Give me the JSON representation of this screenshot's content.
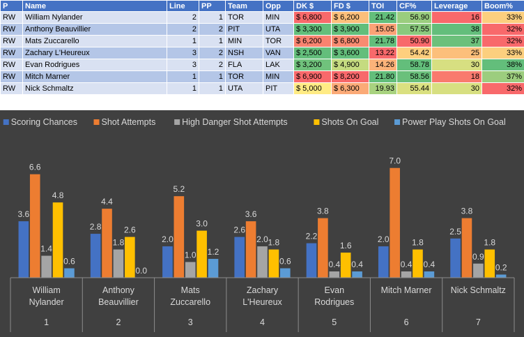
{
  "table": {
    "headers": [
      "P",
      "Name",
      "Line",
      "PP",
      "Team",
      "Opp",
      "DK $",
      "FD $",
      "TOI",
      "CF%",
      "Leverage",
      "Boom%"
    ],
    "rows": [
      {
        "pos": "RW",
        "name": "William Nylander",
        "line": "2",
        "pp": "1",
        "team": "TOR",
        "opp": "MIN",
        "dk": "$ 6,800",
        "fd": "$ 6,200",
        "toi": "21.42",
        "cf": "56.90",
        "leverage": "16",
        "boom": "33%"
      },
      {
        "pos": "RW",
        "name": "Anthony Beauvillier",
        "line": "2",
        "pp": "2",
        "team": "PIT",
        "opp": "UTA",
        "dk": "$ 3,300",
        "fd": "$ 3,900",
        "toi": "15.05",
        "cf": "57.55",
        "leverage": "38",
        "boom": "32%"
      },
      {
        "pos": "RW",
        "name": "Mats Zuccarello",
        "line": "1",
        "pp": "1",
        "team": "MIN",
        "opp": "TOR",
        "dk": "$ 6,200",
        "fd": "$ 6,800",
        "toi": "21.78",
        "cf": "50.90",
        "leverage": "37",
        "boom": "32%"
      },
      {
        "pos": "RW",
        "name": "Zachary L'Heureux",
        "line": "3",
        "pp": "2",
        "team": "NSH",
        "opp": "VAN",
        "dk": "$ 2,500",
        "fd": "$ 3,600",
        "toi": "13.22",
        "cf": "54.42",
        "leverage": "25",
        "boom": "33%"
      },
      {
        "pos": "RW",
        "name": "Evan Rodrigues",
        "line": "3",
        "pp": "2",
        "team": "FLA",
        "opp": "LAK",
        "dk": "$ 3,200",
        "fd": "$ 4,900",
        "toi": "14.26",
        "cf": "58.78",
        "leverage": "30",
        "boom": "38%"
      },
      {
        "pos": "RW",
        "name": "Mitch Marner",
        "line": "1",
        "pp": "1",
        "team": "TOR",
        "opp": "MIN",
        "dk": "$ 6,900",
        "fd": "$ 8,200",
        "toi": "21.80",
        "cf": "58.56",
        "leverage": "18",
        "boom": "37%"
      },
      {
        "pos": "RW",
        "name": "Nick Schmaltz",
        "line": "1",
        "pp": "1",
        "team": "UTA",
        "opp": "PIT",
        "dk": "$ 5,000",
        "fd": "$ 6,300",
        "toi": "19.93",
        "cf": "55.44",
        "leverage": "30",
        "boom": "32%"
      }
    ],
    "colors": {
      "dk": [
        "#f8696b",
        "#63be7b",
        "#f98370",
        "#63be7b",
        "#70c27c",
        "#f8696b",
        "#ffeb84"
      ],
      "fd": [
        "#fcbf7b",
        "#63be7b",
        "#f98b71",
        "#63be7b",
        "#c5db80",
        "#f8696b",
        "#fbaa77"
      ],
      "toi": [
        "#63be7b",
        "#fba276",
        "#63be7b",
        "#f8696b",
        "#fbb37a",
        "#63be7b",
        "#a8d27f"
      ],
      "cf": [
        "#9acd7e",
        "#8ac97d",
        "#f8696b",
        "#fdcf7e",
        "#63be7b",
        "#6ac07b",
        "#dae080"
      ],
      "leverage": [
        "#f8696b",
        "#63be7b",
        "#6cc07b",
        "#fcbf7b",
        "#d7df81",
        "#f97a6e",
        "#d7df81"
      ],
      "boom": [
        "#fccf7e",
        "#f8696b",
        "#f8696b",
        "#fccf7e",
        "#63be7b",
        "#9ccd7e",
        "#f8696b"
      ]
    }
  },
  "chart_data": {
    "type": "bar",
    "title": "",
    "categories": [
      "William Nylander",
      "Anthony Beauvillier",
      "Mats Zuccarello",
      "Zachary L'Heureux",
      "Evan Rodrigues",
      "Mitch Marner",
      "Nick Schmaltz"
    ],
    "category_index": [
      "1",
      "2",
      "3",
      "4",
      "5",
      "6",
      "7"
    ],
    "series": [
      {
        "name": "Scoring Chances",
        "color": "#4472c4",
        "values": [
          3.6,
          2.8,
          2.0,
          2.6,
          2.2,
          2.0,
          2.5
        ]
      },
      {
        "name": "Shot Attempts",
        "color": "#ed7d31",
        "values": [
          6.6,
          4.4,
          5.2,
          3.6,
          3.8,
          7.0,
          3.8
        ]
      },
      {
        "name": "High Danger Shot Attempts",
        "color": "#a5a5a5",
        "values": [
          1.4,
          1.8,
          1.0,
          2.0,
          0.4,
          0.4,
          0.9
        ]
      },
      {
        "name": "Shots On Goal",
        "color": "#ffc000",
        "values": [
          4.8,
          2.6,
          3.0,
          1.8,
          1.6,
          1.8,
          1.8
        ]
      },
      {
        "name": "Power Play Shots On Goal",
        "color": "#5b9bd5",
        "values": [
          0.6,
          0.0,
          1.2,
          0.6,
          0.4,
          0.4,
          0.2
        ]
      }
    ],
    "ylim": [
      0,
      7.7
    ],
    "legend": "top",
    "grid": false,
    "xlabel": "",
    "ylabel": ""
  }
}
